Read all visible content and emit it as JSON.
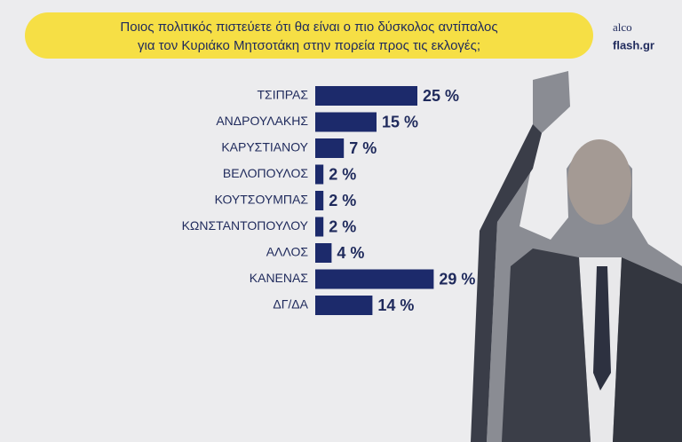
{
  "chart_data": {
    "type": "hbar",
    "title": [
      "Ποιος πολιτικός πιστεύετε ότι θα είναι ο πιο δύσκολος αντίπαλος",
      "για τον Κυριάκο Μητσοτάκη στην πορεία προς τις εκλογές;"
    ],
    "categories": [
      "ΤΣΙΠΡΑΣ",
      "ΑΝΔΡΟΥΛΑΚΗΣ",
      "ΚΑΡΥΣΤΙΑΝΟΥ",
      "ΒΕΛΟΠΟΥΛΟΣ",
      "ΚΟΥΤΣΟΥΜΠΑΣ",
      "ΚΩΝΣΤΑΝΤΟΠΟΥΛΟΥ",
      "ΑΛΛΟΣ",
      "ΚΑΝΕΝΑΣ",
      "ΔΓ/ΔΑ"
    ],
    "values": [
      25,
      15,
      7,
      2,
      2,
      2,
      4,
      29,
      14
    ],
    "value_labels": [
      "25 %",
      "15 %",
      "7 %",
      "2 %",
      "2 %",
      "2 %",
      "4 %",
      "29 %",
      "14 %"
    ],
    "color": "#1c2a6b"
  },
  "logo": {
    "brand": "alco",
    "site": "flash.gr"
  }
}
